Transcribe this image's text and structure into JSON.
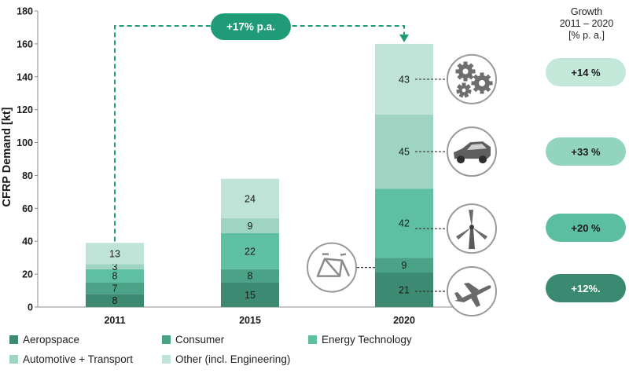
{
  "chart_data": {
    "type": "bar",
    "stacked": true,
    "categories": [
      "2011",
      "2015",
      "2020"
    ],
    "ylabel": "CFRP Demand [kt]",
    "ylim": [
      0,
      180
    ],
    "yticks": [
      0,
      20,
      40,
      60,
      80,
      100,
      120,
      140,
      160,
      180
    ],
    "grid": false,
    "legend_position": "bottom",
    "series": [
      {
        "name": "Aeropspace",
        "color": "#3d8a72",
        "values": [
          8,
          15,
          21
        ],
        "labels": [
          "8",
          "15",
          "21"
        ]
      },
      {
        "name": "Consumer",
        "color": "#4aa386",
        "values": [
          7,
          8,
          9
        ],
        "labels": [
          "7",
          "8",
          "9"
        ]
      },
      {
        "name": "Energy Technology",
        "color": "#5fbfa3",
        "values": [
          8,
          22,
          42
        ],
        "labels": [
          "8",
          "22",
          "42"
        ]
      },
      {
        "name": "Automotive + Transport",
        "color": "#9ed4c1",
        "values": [
          3,
          9,
          45
        ],
        "labels": [
          "3",
          "9",
          "45"
        ]
      },
      {
        "name": "Other (incl. Engineering)",
        "color": "#bfe3d7",
        "values": [
          13,
          24,
          43
        ],
        "labels": [
          "13",
          "24",
          "43"
        ]
      }
    ],
    "annotation": {
      "label": "+17% p.a.",
      "from": "2011",
      "to": "2020",
      "color": "#1f9b78"
    }
  },
  "growth": {
    "title_lines": [
      "Growth",
      "2011 – 2020",
      "[% p. a.]"
    ],
    "pills": [
      {
        "label": "+14 %",
        "series": "Other (incl. Engineering)",
        "bg": "#c3e8da",
        "dark": false
      },
      {
        "label": "+33 %",
        "series": "Automotive + Transport",
        "bg": "#93d4be",
        "dark": false
      },
      {
        "label": "+20 %",
        "series": "Energy Technology",
        "bg": "#5cbea0",
        "dark": false
      },
      {
        "label": "+12%.",
        "series": "Aeropspace",
        "bg": "#3a8a72",
        "dark": true
      }
    ]
  },
  "icons": [
    {
      "name": "gears-icon",
      "series": "Other (incl. Engineering)"
    },
    {
      "name": "car-icon",
      "series": "Automotive + Transport"
    },
    {
      "name": "wind-turbine-icon",
      "series": "Energy Technology"
    },
    {
      "name": "bicycle-frame-icon",
      "series": "Consumer"
    },
    {
      "name": "airplane-icon",
      "series": "Aeropspace"
    }
  ]
}
